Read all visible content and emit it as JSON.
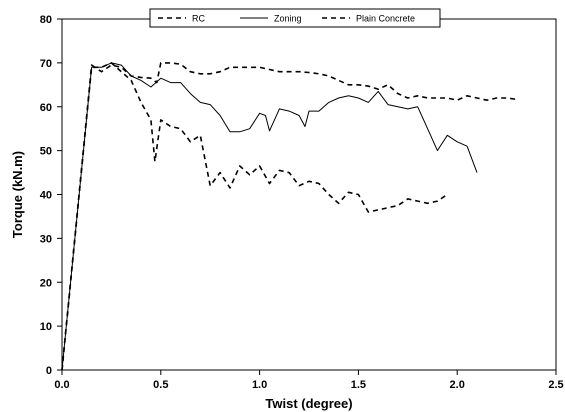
{
  "chart_data": {
    "type": "line",
    "title": "",
    "xlabel": "Twist (degree)",
    "ylabel": "Torque (kN.m)",
    "xlim": [
      0,
      2.5
    ],
    "ylim": [
      0,
      80
    ],
    "x_ticks": [
      "0.0",
      "0.5",
      "1.0",
      "1.5",
      "2.0",
      "2.5"
    ],
    "y_ticks": [
      "0",
      "10",
      "20",
      "30",
      "40",
      "50",
      "60",
      "70",
      "80"
    ],
    "grid": false,
    "legend_position": "top",
    "series": [
      {
        "name": "RC",
        "style": "dashed",
        "x": [
          0,
          0.15,
          0.2,
          0.25,
          0.3,
          0.35,
          0.4,
          0.45,
          0.48,
          0.5,
          0.55,
          0.6,
          0.65,
          0.7,
          0.75,
          0.8,
          0.85,
          0.9,
          0.95,
          1.0,
          1.05,
          1.1,
          1.15,
          1.2,
          1.25,
          1.3,
          1.35,
          1.4,
          1.45,
          1.5,
          1.55,
          1.6,
          1.65,
          1.7,
          1.75,
          1.8,
          1.85,
          1.9,
          1.95,
          2.0,
          2.05,
          2.1,
          2.15,
          2.2,
          2.25,
          2.3
        ],
        "values": [
          0,
          69.5,
          68,
          69.5,
          69,
          67,
          66.7,
          66.5,
          65.5,
          70,
          70,
          69.7,
          68,
          67.5,
          67.5,
          68,
          69,
          69,
          69,
          69,
          68.5,
          68,
          68,
          68,
          67.8,
          67.5,
          67,
          66,
          65,
          65,
          64.7,
          64,
          65,
          63,
          62,
          62.5,
          62,
          62,
          62,
          61.5,
          62.5,
          62,
          61.5,
          62,
          62,
          61.7
        ]
      },
      {
        "name": "Zoning",
        "style": "solid",
        "x": [
          0,
          0.15,
          0.2,
          0.25,
          0.3,
          0.35,
          0.4,
          0.45,
          0.5,
          0.55,
          0.6,
          0.65,
          0.7,
          0.75,
          0.8,
          0.85,
          0.9,
          0.95,
          1.0,
          1.03,
          1.05,
          1.1,
          1.15,
          1.2,
          1.23,
          1.25,
          1.3,
          1.35,
          1.4,
          1.45,
          1.5,
          1.55,
          1.6,
          1.65,
          1.7,
          1.75,
          1.8,
          1.85,
          1.9,
          1.95,
          2.0,
          2.05,
          2.1
        ],
        "values": [
          0,
          69,
          69,
          70,
          69.5,
          67,
          66,
          64.5,
          66.5,
          65.5,
          65.5,
          63,
          61,
          60.5,
          58,
          54.3,
          54.3,
          55,
          58.5,
          58,
          54.5,
          59.5,
          59,
          58,
          55.5,
          59,
          59,
          61,
          62,
          62.5,
          62,
          61,
          63.5,
          60.5,
          60,
          59.5,
          60,
          55,
          50,
          53.5,
          52,
          51,
          45
        ]
      },
      {
        "name": "Plain Concrete",
        "style": "dashed",
        "x": [
          0,
          0.15,
          0.2,
          0.25,
          0.3,
          0.35,
          0.4,
          0.45,
          0.47,
          0.5,
          0.55,
          0.6,
          0.65,
          0.7,
          0.75,
          0.8,
          0.85,
          0.9,
          0.95,
          1.0,
          1.05,
          1.1,
          1.15,
          1.2,
          1.25,
          1.3,
          1.35,
          1.4,
          1.45,
          1.5,
          1.55,
          1.6,
          1.65,
          1.7,
          1.75,
          1.8,
          1.85,
          1.9,
          1.95
        ],
        "values": [
          0,
          69,
          69,
          70,
          68,
          66,
          61,
          57,
          47.5,
          57,
          55.5,
          55,
          52,
          53.5,
          42,
          45,
          41.5,
          46.5,
          44.5,
          46.5,
          42.5,
          45.5,
          45,
          42,
          43,
          42.5,
          40,
          38,
          40.5,
          40,
          36,
          36.5,
          37,
          37.5,
          39,
          38.5,
          38,
          38.5,
          40
        ]
      }
    ]
  }
}
